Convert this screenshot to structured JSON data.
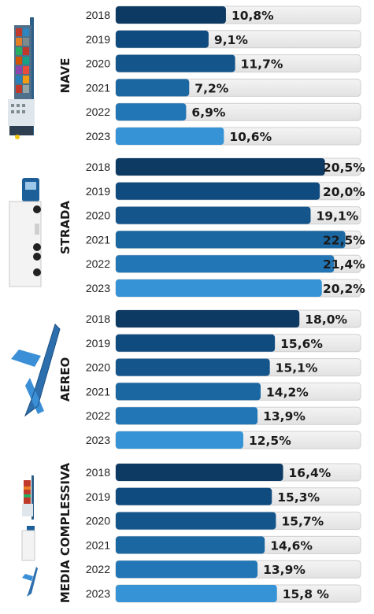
{
  "chart_data": [
    {
      "type": "bar",
      "group": "NAVE",
      "icon": "ship-icon",
      "categories": [
        "2018",
        "2019",
        "2020",
        "2021",
        "2022",
        "2023"
      ],
      "values": [
        10.8,
        9.1,
        11.7,
        7.2,
        6.9,
        10.6
      ],
      "value_labels": [
        "10,8%",
        "9,1%",
        "11,7%",
        "7,2%",
        "6,9%",
        "10,6%"
      ]
    },
    {
      "type": "bar",
      "group": "STRADA",
      "icon": "truck-icon",
      "categories": [
        "2018",
        "2019",
        "2020",
        "2021",
        "2022",
        "2023"
      ],
      "values": [
        20.5,
        20.0,
        19.1,
        22.5,
        21.4,
        20.2
      ],
      "value_labels": [
        "20,5%",
        "20,0%",
        "19,1%",
        "22,5%",
        "21,4%",
        "20,2%"
      ]
    },
    {
      "type": "bar",
      "group": "AEREO",
      "icon": "airplane-icon",
      "categories": [
        "2018",
        "2019",
        "2020",
        "2021",
        "2022",
        "2023"
      ],
      "values": [
        18.0,
        15.6,
        15.1,
        14.2,
        13.9,
        12.5
      ],
      "value_labels": [
        "18,0%",
        "15,6%",
        "15,1%",
        "14,2%",
        "13,9%",
        "12,5%"
      ]
    },
    {
      "type": "bar",
      "group": "MEDIA COMPLESSIVA",
      "icon": "ship-truck-airplane-icon",
      "categories": [
        "2018",
        "2019",
        "2020",
        "2021",
        "2022",
        "2023"
      ],
      "values": [
        16.4,
        15.3,
        15.7,
        14.6,
        13.9,
        15.8
      ],
      "value_labels": [
        "16,4%",
        "15,3%",
        "15,7%",
        "14,6%",
        "13,9%",
        "15,8 %"
      ]
    }
  ],
  "axis": {
    "xlim": [
      0,
      24
    ],
    "grid": false,
    "legend": "none"
  },
  "colors": {
    "year_palette": [
      "#0d3a63",
      "#104b7f",
      "#14558c",
      "#1a67a1",
      "#2276b6",
      "#3593d6"
    ],
    "track": "#ebebeb",
    "track_border": "#cfcfcf",
    "text": "#1a1a1a"
  }
}
